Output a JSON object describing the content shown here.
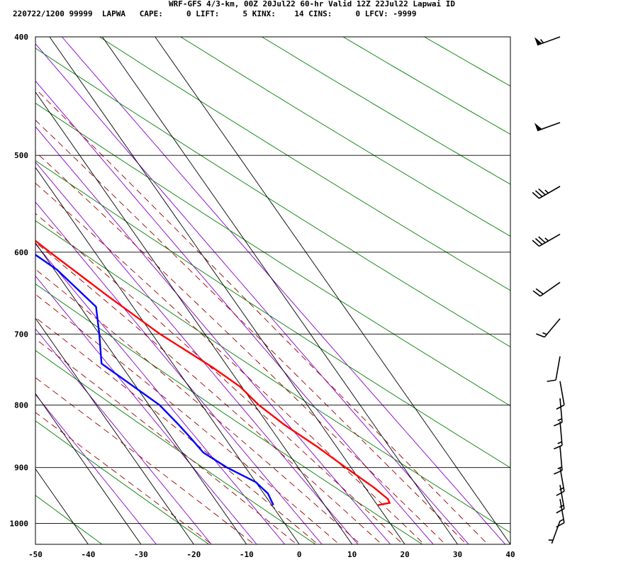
{
  "header": {
    "title": "WRF-GFS 4/3-km, 00Z 20Jul22 60-hr Valid 12Z 22Jul22 Lapwai ID",
    "station_line": "220722/1200 99999  LAPWA   CAPE:     0 LIFT:     5 KINX:    14 CINS:     0 LFCV: -9999"
  },
  "colors": {
    "temperature": "#ff0000",
    "dewpoint": "#0000ff",
    "isotherm": "#000000",
    "dry_adiabat": "#008000",
    "moist_adiabat": "#990000",
    "mixing_ratio": "#8800cc",
    "wind_barb": "#000000"
  },
  "chart_data": {
    "type": "line",
    "title": "",
    "xlabel": "",
    "ylabel": "",
    "x_axis": "temperature (C), skewed",
    "y_axis": "pressure (mb), log scale",
    "xlim": [
      -50,
      40
    ],
    "ylim": [
      1040,
      400
    ],
    "x_ticks": [
      -50,
      -40,
      -30,
      -20,
      -10,
      0,
      10,
      20,
      30,
      40
    ],
    "y_ticks": [
      400,
      500,
      600,
      700,
      800,
      900,
      1000
    ],
    "grid": true,
    "series": [
      {
        "role": "temperature",
        "points": [
          {
            "p": 966,
            "t": 20.1
          },
          {
            "p": 962,
            "t": 22.6
          },
          {
            "p": 955,
            "t": 22.8
          },
          {
            "p": 935,
            "t": 21.7
          },
          {
            "p": 900,
            "t": 19.0
          },
          {
            "p": 865,
            "t": 16.3
          },
          {
            "p": 830,
            "t": 13.0
          },
          {
            "p": 800,
            "t": 10.8
          },
          {
            "p": 773,
            "t": 9.7
          },
          {
            "p": 745,
            "t": 7.0
          },
          {
            "p": 700,
            "t": 1.5
          },
          {
            "p": 650,
            "t": -3.5
          },
          {
            "p": 600,
            "t": -8.5
          },
          {
            "p": 550,
            "t": -13.5
          },
          {
            "p": 500,
            "t": -18.0
          },
          {
            "p": 450,
            "t": -24.0
          },
          {
            "p": 400,
            "t": -31.0
          }
        ]
      },
      {
        "role": "dewpoint",
        "points": [
          {
            "p": 966,
            "t": 0.3
          },
          {
            "p": 945,
            "t": 0.8
          },
          {
            "p": 925,
            "t": 0.0
          },
          {
            "p": 900,
            "t": -3.5
          },
          {
            "p": 875,
            "t": -6.0
          },
          {
            "p": 850,
            "t": -6.5
          },
          {
            "p": 830,
            "t": -7.0
          },
          {
            "p": 800,
            "t": -8.0
          },
          {
            "p": 740,
            "t": -13.5
          },
          {
            "p": 700,
            "t": -10.0
          },
          {
            "p": 665,
            "t": -7.0
          },
          {
            "p": 620,
            "t": -9.5
          },
          {
            "p": 580,
            "t": -14.5
          },
          {
            "p": 530,
            "t": -23.0
          },
          {
            "p": 470,
            "t": -33.0
          },
          {
            "p": 440,
            "t": -38.0
          },
          {
            "p": 400,
            "t": -44.0
          }
        ]
      }
    ],
    "wind_barbs": [
      {
        "p": 400,
        "dir": 250,
        "speed": 55
      },
      {
        "p": 470,
        "dir": 250,
        "speed": 50
      },
      {
        "p": 530,
        "dir": 240,
        "speed": 35
      },
      {
        "p": 580,
        "dir": 240,
        "speed": 35
      },
      {
        "p": 635,
        "dir": 235,
        "speed": 20
      },
      {
        "p": 680,
        "dir": 220,
        "speed": 15
      },
      {
        "p": 730,
        "dir": 190,
        "speed": 10
      },
      {
        "p": 765,
        "dir": 170,
        "speed": 10
      },
      {
        "p": 790,
        "dir": 175,
        "speed": 15
      },
      {
        "p": 825,
        "dir": 175,
        "speed": 15
      },
      {
        "p": 865,
        "dir": 175,
        "speed": 15
      },
      {
        "p": 900,
        "dir": 170,
        "speed": 15
      },
      {
        "p": 930,
        "dir": 170,
        "speed": 15
      },
      {
        "p": 955,
        "dir": 170,
        "speed": 15
      },
      {
        "p": 995,
        "dir": 200,
        "speed": 5
      }
    ]
  }
}
